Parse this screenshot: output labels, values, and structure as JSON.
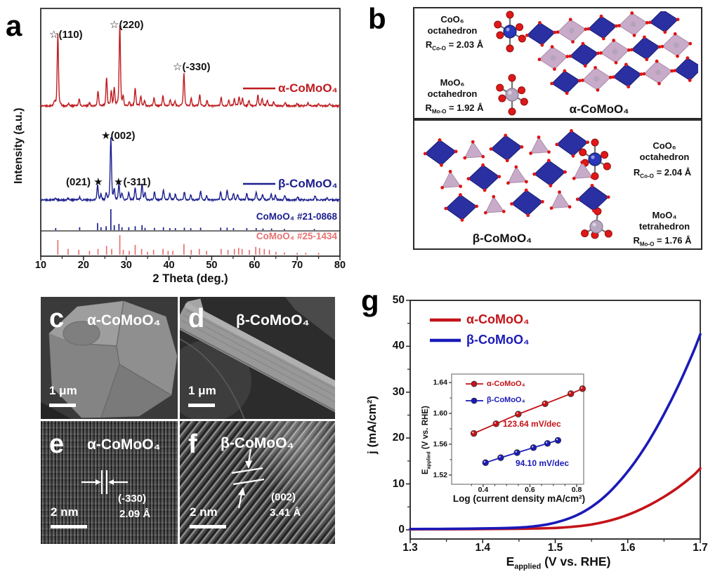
{
  "panel_a": {
    "letter": "a"
  },
  "panel_b": {
    "letter": "b",
    "alpha": {
      "title": "α-CoMoO₄",
      "co": {
        "formula": "CoO₆",
        "shape": "octahedron",
        "r_pre": "R",
        "r_sub": "Co-O",
        "r_val": "= 2.03 Å"
      },
      "mo": {
        "formula": "MoO₆",
        "shape": "octahedron",
        "r_pre": "R",
        "r_sub": "Mo-O",
        "r_val": "= 1.92 Å"
      }
    },
    "beta": {
      "title": "β-CoMoO₄",
      "co": {
        "formula": "CoO₆",
        "shape": "octahedron",
        "r_pre": "R",
        "r_sub": "Co-O",
        "r_val": "= 2.04 Å"
      },
      "mo": {
        "formula": "MoO₄",
        "shape": "tetrahedron",
        "r_pre": "R",
        "r_sub": "Mo-O",
        "r_val": "= 1.76 Å"
      }
    }
  },
  "panel_c": {
    "letter": "c",
    "title": "α-CoMoO₄",
    "scale": "1 μm"
  },
  "panel_d": {
    "letter": "d",
    "title": "β-CoMoO₄",
    "scale": "1 μm"
  },
  "panel_e": {
    "letter": "e",
    "title": "α-CoMoO₄",
    "scale": "2 nm",
    "plane": "(-330)",
    "spacing": "2.09 Å"
  },
  "panel_f": {
    "letter": "f",
    "title": "β-CoMoO₄",
    "scale": "2 nm",
    "plane": "(002)",
    "spacing": "3.41 Å"
  },
  "panel_g": {
    "letter": "g"
  },
  "chart_data": [
    {
      "id": "xrd",
      "type": "line",
      "xlabel": "2 Theta (deg.)",
      "ylabel": "Intensity (a.u.)",
      "x_ticks": [
        10,
        20,
        30,
        40,
        50,
        60,
        70,
        80
      ],
      "xlim": [
        10,
        80
      ],
      "grid": false,
      "series": [
        {
          "name": "α-CoMoO₄",
          "color": "#c01a1e",
          "style": "trace",
          "peak_labels": [
            "☆(110)",
            "☆(220)",
            "☆(-330)"
          ],
          "peaks": [
            [
              13.2,
              5
            ],
            [
              14.0,
              88
            ],
            [
              16.5,
              3
            ],
            [
              19.0,
              9
            ],
            [
              21.4,
              4
            ],
            [
              23.4,
              18
            ],
            [
              25.4,
              34
            ],
            [
              26.5,
              17
            ],
            [
              27.2,
              22
            ],
            [
              28.5,
              100
            ],
            [
              29.3,
              10
            ],
            [
              30.7,
              6
            ],
            [
              32.1,
              22
            ],
            [
              33.4,
              12
            ],
            [
              34.3,
              6
            ],
            [
              36.5,
              10
            ],
            [
              38.6,
              13
            ],
            [
              40.3,
              8
            ],
            [
              41.4,
              6
            ],
            [
              43.5,
              40
            ],
            [
              45.2,
              10
            ],
            [
              47.2,
              14
            ],
            [
              48.9,
              7
            ],
            [
              52.2,
              11
            ],
            [
              54.0,
              7
            ],
            [
              55.3,
              9
            ],
            [
              56.4,
              11
            ],
            [
              57.2,
              9
            ],
            [
              58.7,
              7
            ],
            [
              60.8,
              13
            ],
            [
              61.8,
              9
            ],
            [
              63.0,
              7
            ],
            [
              64.5,
              5
            ],
            [
              67.2,
              4
            ],
            [
              70.0,
              3
            ],
            [
              72.5,
              4
            ],
            [
              75.0,
              3
            ],
            [
              77.5,
              3
            ]
          ]
        },
        {
          "name": "β-CoMoO₄",
          "color": "#1b1f8e",
          "style": "trace",
          "peak_labels": [
            "★(002)",
            "(021) ★",
            "★(-311)"
          ],
          "peaks": [
            [
              13.5,
              4
            ],
            [
              16.4,
              3
            ],
            [
              19.1,
              5
            ],
            [
              23.3,
              24
            ],
            [
              24.1,
              9
            ],
            [
              25.3,
              11
            ],
            [
              26.4,
              100
            ],
            [
              27.2,
              16
            ],
            [
              28.3,
              26
            ],
            [
              29.0,
              11
            ],
            [
              30.6,
              13
            ],
            [
              32.1,
              20
            ],
            [
              33.7,
              26
            ],
            [
              34.4,
              11
            ],
            [
              36.6,
              13
            ],
            [
              38.7,
              17
            ],
            [
              40.2,
              11
            ],
            [
              41.5,
              10
            ],
            [
              43.6,
              13
            ],
            [
              45.1,
              9
            ],
            [
              47.4,
              15
            ],
            [
              48.8,
              7
            ],
            [
              52.1,
              14
            ],
            [
              53.6,
              16
            ],
            [
              55.1,
              11
            ],
            [
              56.1,
              9
            ],
            [
              58.2,
              11
            ],
            [
              60.4,
              13
            ],
            [
              61.9,
              9
            ],
            [
              63.9,
              9
            ],
            [
              64.9,
              7
            ],
            [
              67.1,
              7
            ],
            [
              70.1,
              5
            ],
            [
              74.2,
              7
            ],
            [
              77.0,
              4
            ]
          ]
        },
        {
          "name": "CoMoO₄ #21-0868",
          "color": "#1b1f8e",
          "style": "sticks",
          "peaks": [
            [
              13.5,
              10
            ],
            [
              19.1,
              14
            ],
            [
              23.3,
              34
            ],
            [
              24.1,
              14
            ],
            [
              25.3,
              19
            ],
            [
              26.4,
              100
            ],
            [
              27.2,
              24
            ],
            [
              28.3,
              30
            ],
            [
              29.0,
              14
            ],
            [
              30.6,
              14
            ],
            [
              32.1,
              19
            ],
            [
              33.7,
              24
            ],
            [
              34.4,
              11
            ],
            [
              36.6,
              11
            ],
            [
              38.7,
              14
            ],
            [
              40.2,
              10
            ],
            [
              41.5,
              10
            ],
            [
              43.6,
              12
            ],
            [
              45.1,
              10
            ],
            [
              47.4,
              12
            ],
            [
              52.1,
              12
            ],
            [
              53.6,
              12
            ],
            [
              55.1,
              10
            ],
            [
              58.2,
              10
            ],
            [
              60.4,
              10
            ],
            [
              62.0,
              8
            ],
            [
              64.0,
              8
            ],
            [
              67.0,
              6
            ],
            [
              74.0,
              6
            ]
          ]
        },
        {
          "name": "CoMoO₄ #25-1434",
          "color": "#e87272",
          "style": "sticks",
          "peaks": [
            [
              14.0,
              75
            ],
            [
              16.4,
              30
            ],
            [
              18.9,
              25
            ],
            [
              21.4,
              20
            ],
            [
              23.4,
              30
            ],
            [
              25.4,
              45
            ],
            [
              26.6,
              30
            ],
            [
              28.5,
              100
            ],
            [
              29.3,
              25
            ],
            [
              30.7,
              20
            ],
            [
              32.1,
              50
            ],
            [
              33.6,
              30
            ],
            [
              35.0,
              15
            ],
            [
              36.4,
              25
            ],
            [
              38.6,
              30
            ],
            [
              39.8,
              20
            ],
            [
              40.9,
              20
            ],
            [
              43.5,
              55
            ],
            [
              45.2,
              25
            ],
            [
              47.1,
              30
            ],
            [
              48.8,
              20
            ],
            [
              52.2,
              30
            ],
            [
              53.8,
              25
            ],
            [
              55.3,
              30
            ],
            [
              56.3,
              35
            ],
            [
              57.1,
              30
            ],
            [
              58.8,
              25
            ],
            [
              60.3,
              40
            ],
            [
              61.2,
              35
            ],
            [
              62.3,
              30
            ],
            [
              63.5,
              25
            ],
            [
              65.0,
              15
            ],
            [
              67.0,
              12
            ],
            [
              70.0,
              10
            ],
            [
              72.0,
              10
            ],
            [
              75.0,
              10
            ]
          ]
        }
      ]
    },
    {
      "id": "lsv",
      "type": "line",
      "xlabel_pre": "E",
      "xlabel_sub": "applied",
      "xlabel_post": " (V vs. RHE)",
      "ylabel": "j (mA/cm²)",
      "x_ticks": [
        "1.3",
        "1.4",
        "1.5",
        "1.6",
        "1.7"
      ],
      "y_ticks": [
        "0",
        "10",
        "20",
        "30",
        "40",
        "50"
      ],
      "xlim": [
        1.3,
        1.7
      ],
      "ylim": [
        -2,
        50
      ],
      "grid": false,
      "legend_position": "top-left",
      "series": [
        {
          "name": "α-CoMoO₄",
          "color": "#c41318",
          "points": [
            [
              1.3,
              0.12
            ],
            [
              1.34,
              0.13
            ],
            [
              1.38,
              0.15
            ],
            [
              1.42,
              0.18
            ],
            [
              1.46,
              0.25
            ],
            [
              1.49,
              0.35
            ],
            [
              1.51,
              0.5
            ],
            [
              1.53,
              0.75
            ],
            [
              1.55,
              1.15
            ],
            [
              1.57,
              1.8
            ],
            [
              1.59,
              2.7
            ],
            [
              1.61,
              3.9
            ],
            [
              1.63,
              5.4
            ],
            [
              1.65,
              7.2
            ],
            [
              1.67,
              9.3
            ],
            [
              1.69,
              11.8
            ],
            [
              1.7,
              13.4
            ]
          ]
        },
        {
          "name": "β-CoMoO₄",
          "color": "#1a1ab8",
          "points": [
            [
              1.3,
              0.18
            ],
            [
              1.34,
              0.2
            ],
            [
              1.38,
              0.25
            ],
            [
              1.42,
              0.35
            ],
            [
              1.45,
              0.5
            ],
            [
              1.47,
              0.75
            ],
            [
              1.49,
              1.2
            ],
            [
              1.51,
              2.0
            ],
            [
              1.53,
              3.2
            ],
            [
              1.55,
              5.0
            ],
            [
              1.57,
              7.5
            ],
            [
              1.59,
              10.8
            ],
            [
              1.61,
              14.8
            ],
            [
              1.63,
              19.6
            ],
            [
              1.65,
              25.2
            ],
            [
              1.67,
              31.5
            ],
            [
              1.69,
              38.6
            ],
            [
              1.7,
              42.6
            ]
          ]
        }
      ]
    },
    {
      "id": "tafel-inset",
      "type": "scatter-line",
      "xlabel": "Log (current density mA/cm²)",
      "ylabel_pre": "E",
      "ylabel_sub": "applied",
      "ylabel_post": " (V vs. RHE)",
      "x_ticks": [
        "0.4",
        "0.6",
        "0.8"
      ],
      "y_ticks": [
        "1.52",
        "1.56",
        "1.60",
        "1.64"
      ],
      "xlim": [
        0.265,
        0.83
      ],
      "ylim": [
        1.508,
        1.651
      ],
      "legend_position": "top-left",
      "series": [
        {
          "name": "α-CoMoO₄",
          "color": "#c41318",
          "slope_label": "123.64 mV/dec",
          "points": [
            [
              0.36,
              1.574
            ],
            [
              0.455,
              1.5865
            ],
            [
              0.55,
              1.599
            ],
            [
              0.665,
              1.6125
            ],
            [
              0.775,
              1.6255
            ],
            [
              0.825,
              1.632
            ]
          ]
        },
        {
          "name": "β-CoMoO₄",
          "color": "#1a1ab8",
          "slope_label": "94.10 mV/dec",
          "points": [
            [
              0.41,
              1.536
            ],
            [
              0.475,
              1.5425
            ],
            [
              0.545,
              1.549
            ],
            [
              0.615,
              1.5555
            ],
            [
              0.675,
              1.561
            ],
            [
              0.72,
              1.565
            ]
          ]
        }
      ]
    }
  ]
}
